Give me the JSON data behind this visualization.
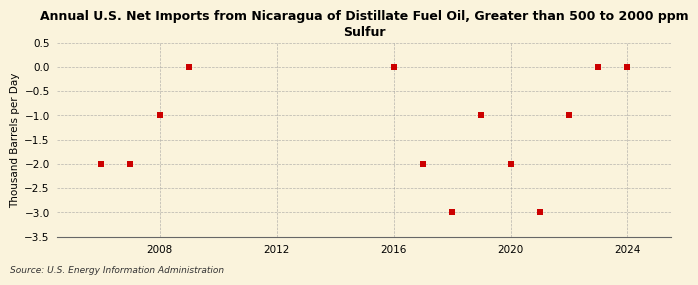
{
  "title": "Annual U.S. Net Imports from Nicaragua of Distillate Fuel Oil, Greater than 500 to 2000 ppm\nSulfur",
  "ylabel": "Thousand Barrels per Day",
  "source": "Source: U.S. Energy Information Administration",
  "years": [
    2006,
    2007,
    2008,
    2009,
    2016,
    2017,
    2018,
    2019,
    2020,
    2021,
    2022,
    2023,
    2024
  ],
  "values": [
    -2.0,
    -2.0,
    -1.0,
    0.0,
    0.0,
    -2.0,
    -3.0,
    -1.0,
    -2.0,
    -3.0,
    -1.0,
    0.0,
    0.0
  ],
  "xlim": [
    2004.5,
    2025.5
  ],
  "ylim": [
    -3.5,
    0.5
  ],
  "yticks": [
    0.5,
    0.0,
    -0.5,
    -1.0,
    -1.5,
    -2.0,
    -2.5,
    -3.0,
    -3.5
  ],
  "xticks": [
    2008,
    2012,
    2016,
    2020,
    2024
  ],
  "marker_color": "#cc0000",
  "marker_size": 18,
  "bg_color": "#faf3dc",
  "grid_color": "#999999",
  "title_fontsize": 9,
  "label_fontsize": 7.5,
  "tick_fontsize": 7.5,
  "source_fontsize": 6.5
}
